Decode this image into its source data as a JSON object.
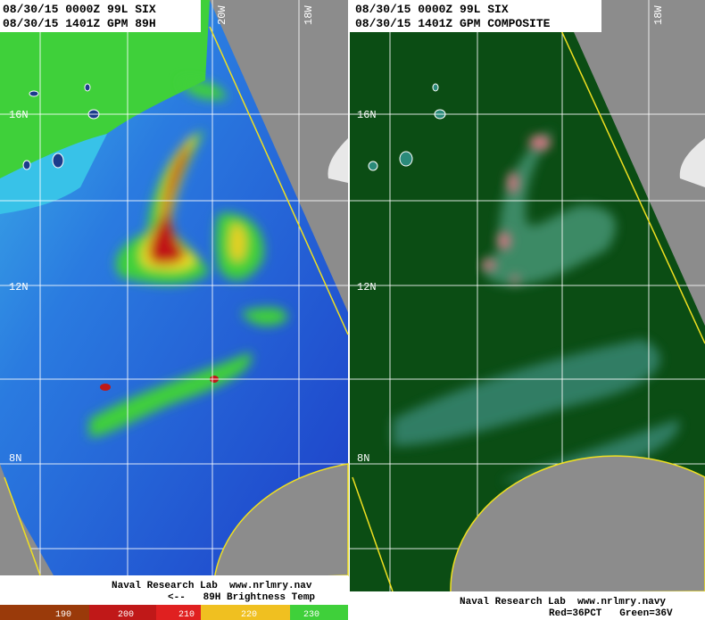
{
  "left_panel": {
    "header": [
      "08/30/15 0000Z 99L SIX",
      "08/30/15 1401Z GPM 89H"
    ],
    "lat_labels": [
      "16N",
      "12N",
      "8N"
    ],
    "lon_labels": [
      "20W",
      "18W"
    ],
    "footer": [
      "Naval Research Lab  www.nrlmry.nav",
      "<--   89H Brightness Temp"
    ],
    "colorbar_labels": [
      "190",
      "200",
      "210",
      "220",
      "230"
    ]
  },
  "right_panel": {
    "header": [
      "08/30/15 0000Z 99L SIX",
      "08/30/15 1401Z GPM COMPOSITE"
    ],
    "lat_labels": [
      "16N",
      "12N",
      "8N"
    ],
    "lon_labels": [
      "18W"
    ],
    "footer": [
      "Naval Research Lab  www.nrlmry.navy",
      "Red=36PCT   Green=36V"
    ]
  }
}
